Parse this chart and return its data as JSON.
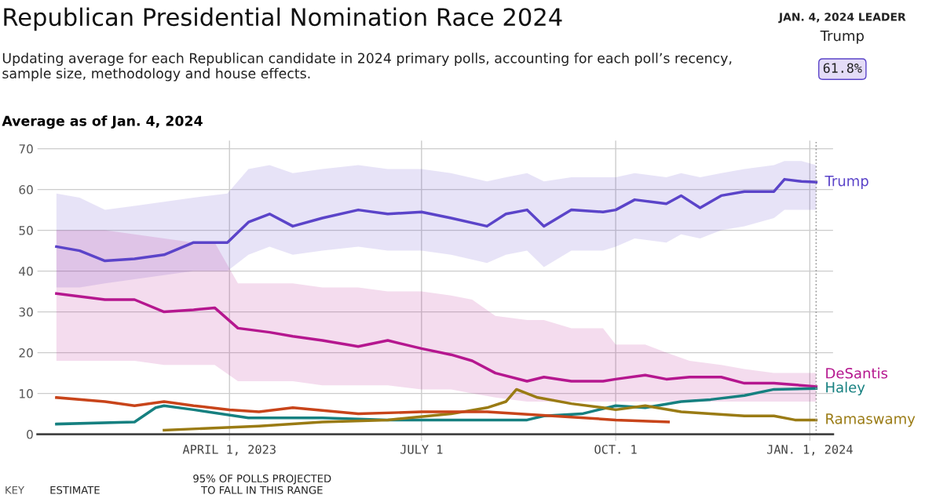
{
  "chart_data": {
    "type": "line",
    "title": "Republican Presidential Nomination Race 2024",
    "subtitle": "Updating average for each Republican candidate in 2024 primary polls, accounting for each poll’s recency, sample size, methodology and house effects.",
    "ylabel": "Average as of Jan. 4, 2024",
    "annotations": [
      "JAN. 4, 2024 LEADER",
      "Trump",
      "61.8%",
      "KEY",
      "ESTIMATE",
      "95% OF POLLS PROJECTED\nTO FALL IN THIS RANGE"
    ],
    "xlim": [
      "2022-12-31",
      "2024-01-12"
    ],
    "ylim": [
      0,
      72
    ],
    "xticks": [
      {
        "value": "2023-04-01",
        "label": "APRIL 1, 2023"
      },
      {
        "value": "2023-07-01",
        "label": "JULY 1"
      },
      {
        "value": "2023-10-01",
        "label": "OCT. 1"
      },
      {
        "value": "2024-01-01",
        "label": "JAN. 1, 2024"
      }
    ],
    "yticks": [
      0,
      10,
      20,
      30,
      40,
      50,
      60,
      70
    ],
    "grid": true,
    "legend": false,
    "marker": "none",
    "line_style": "solid",
    "ref_lines": [
      {
        "axis": "x",
        "value": "2024-01-04",
        "color": "#999999",
        "line_style": "dotted"
      }
    ],
    "series": [
      {
        "name": "Trump",
        "color": "#5b44c9",
        "x": [
          "2023-01-09",
          "2023-01-20",
          "2023-02-01",
          "2023-02-15",
          "2023-03-01",
          "2023-03-15",
          "2023-03-31",
          "2023-04-10",
          "2023-04-20",
          "2023-05-01",
          "2023-05-15",
          "2023-06-01",
          "2023-06-15",
          "2023-07-01",
          "2023-07-15",
          "2023-08-01",
          "2023-08-10",
          "2023-08-20",
          "2023-08-28",
          "2023-09-10",
          "2023-09-25",
          "2023-10-01",
          "2023-10-10",
          "2023-10-25",
          "2023-11-01",
          "2023-11-10",
          "2023-11-20",
          "2023-12-01",
          "2023-12-15",
          "2023-12-20",
          "2023-12-28",
          "2024-01-04"
        ],
        "values": [
          46,
          45,
          42.5,
          43,
          44,
          47,
          47,
          52,
          54,
          51,
          53,
          55,
          54,
          54.5,
          53,
          51,
          54,
          55,
          51,
          55,
          54.5,
          55,
          57.5,
          56.5,
          58.5,
          55.5,
          58.5,
          59.5,
          59.5,
          62.5,
          62,
          61.8
        ],
        "lower": [
          36,
          36,
          37,
          38,
          39,
          40,
          40,
          44,
          46,
          44,
          45,
          46,
          45,
          45,
          44,
          42,
          44,
          45,
          41,
          45,
          45,
          46,
          48,
          47,
          49,
          48,
          50,
          51,
          53,
          55,
          55,
          55
        ],
        "upper": [
          59,
          58,
          55,
          56,
          57,
          58,
          59,
          65,
          66,
          64,
          65,
          66,
          65,
          65,
          64,
          62,
          63,
          64,
          62,
          63,
          63,
          63,
          64,
          63,
          64,
          63,
          64,
          65,
          66,
          67,
          67,
          66
        ]
      },
      {
        "name": "DeSantis",
        "color": "#b5178f",
        "x": [
          "2023-01-09",
          "2023-02-01",
          "2023-02-15",
          "2023-03-01",
          "2023-03-15",
          "2023-03-25",
          "2023-04-05",
          "2023-04-20",
          "2023-05-01",
          "2023-05-15",
          "2023-06-01",
          "2023-06-15",
          "2023-07-01",
          "2023-07-15",
          "2023-07-25",
          "2023-08-05",
          "2023-08-20",
          "2023-08-28",
          "2023-09-10",
          "2023-09-25",
          "2023-10-01",
          "2023-10-15",
          "2023-10-25",
          "2023-11-05",
          "2023-11-20",
          "2023-12-01",
          "2023-12-15",
          "2024-01-04"
        ],
        "values": [
          34.5,
          33,
          33,
          30,
          30.5,
          31,
          26,
          25,
          24,
          23,
          21.5,
          23,
          21,
          19.5,
          18,
          15,
          13,
          14,
          13,
          13,
          13.5,
          14.5,
          13.5,
          14,
          14,
          12.5,
          12.5,
          11.7
        ],
        "lower": [
          18,
          18,
          18,
          17,
          17,
          17,
          13,
          13,
          13,
          12,
          12,
          12,
          11,
          11,
          10,
          9,
          8,
          8,
          8,
          8,
          8,
          8,
          8,
          8,
          8,
          8,
          8,
          8
        ],
        "upper": [
          50,
          50,
          49,
          48,
          47,
          47,
          37,
          37,
          37,
          36,
          36,
          35,
          35,
          34,
          33,
          29,
          28,
          28,
          26,
          26,
          22,
          22,
          20,
          18,
          17,
          16,
          15,
          15
        ]
      },
      {
        "name": "Haley",
        "color": "#168080",
        "x": [
          "2023-01-09",
          "2023-02-15",
          "2023-02-25",
          "2023-03-01",
          "2023-03-15",
          "2023-04-10",
          "2023-05-15",
          "2023-06-15",
          "2023-07-15",
          "2023-08-20",
          "2023-08-28",
          "2023-09-15",
          "2023-10-01",
          "2023-10-15",
          "2023-11-01",
          "2023-11-15",
          "2023-12-01",
          "2023-12-15",
          "2024-01-04"
        ],
        "values": [
          2.5,
          3,
          6.5,
          7,
          6,
          4,
          4,
          3.5,
          3.5,
          3.5,
          4.5,
          5,
          7,
          6.5,
          8,
          8.5,
          9.5,
          11,
          11.2
        ]
      },
      {
        "name": "Ramaswamy",
        "color": "#9a7b14",
        "x": [
          "2023-03-01",
          "2023-04-15",
          "2023-05-15",
          "2023-06-15",
          "2023-07-15",
          "2023-08-01",
          "2023-08-10",
          "2023-08-15",
          "2023-08-25",
          "2023-09-10",
          "2023-09-25",
          "2023-10-01",
          "2023-10-15",
          "2023-11-01",
          "2023-11-15",
          "2023-12-01",
          "2023-12-15",
          "2023-12-25",
          "2024-01-04"
        ],
        "values": [
          1,
          2,
          3,
          3.5,
          5,
          6.5,
          8,
          11,
          9,
          7.5,
          6.5,
          6,
          7,
          5.5,
          5,
          4.5,
          4.5,
          3.5,
          3.5
        ]
      },
      {
        "color": "#c8441a",
        "x": [
          "2023-01-09",
          "2023-02-01",
          "2023-02-15",
          "2023-03-01",
          "2023-03-15",
          "2023-04-01",
          "2023-04-15",
          "2023-05-01",
          "2023-06-01",
          "2023-07-01",
          "2023-08-01",
          "2023-09-01",
          "2023-10-01",
          "2023-10-26"
        ],
        "values": [
          9,
          8,
          7,
          8,
          7,
          6,
          5.5,
          6.5,
          5,
          5.5,
          5.5,
          4.5,
          3.5,
          3
        ]
      }
    ]
  }
}
